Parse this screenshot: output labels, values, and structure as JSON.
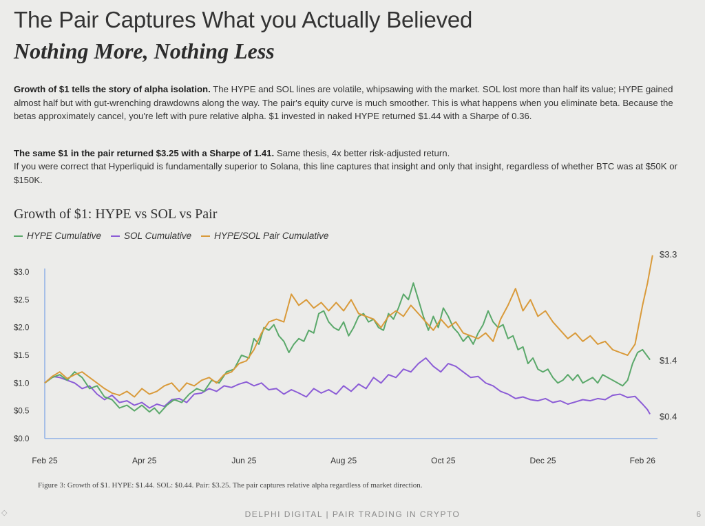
{
  "header": {
    "title": "The Pair Captures What you Actually Believed",
    "subtitle": "Nothing More, Nothing Less"
  },
  "body": {
    "p1_bold": "Growth of $1 tells the story of alpha isolation.",
    "p1_rest": " The HYPE and SOL lines are volatile, whipsawing with the market. SOL lost more than half its value; HYPE gained almost half but with gut-wrenching drawdowns along the way. The pair's equity curve is much smoother. This is what happens when you eliminate beta. Because the betas approximately cancel, you're left with pure relative alpha. $1 invested in naked HYPE returned $1.44 with a Sharpe of 0.36.",
    "p2_bold": "The same $1 in the pair returned $3.25 with a Sharpe of 1.41.",
    "p2_rest": " Same thesis, 4x better risk-adjusted return.",
    "p3": "If you were correct that Hyperliquid is fundamentally superior to Solana, this line captures that insight and only that insight, regardless of whether BTC was at $50K or $150K."
  },
  "chart_data": {
    "type": "line",
    "title": "Growth of $1: HYPE vs SOL vs Pair",
    "xlabel": "",
    "ylabel": "",
    "ylim": [
      0,
      3.0
    ],
    "yticks": [
      "$0.0",
      "$0.5",
      "$1.0",
      "$1.5",
      "$2.0",
      "$2.5",
      "$3.0"
    ],
    "ytick_values": [
      0,
      0.5,
      1.0,
      1.5,
      2.0,
      2.5,
      3.0
    ],
    "xticks": [
      "Feb 25",
      "Apr 25",
      "Jun 25",
      "Aug 25",
      "Oct 25",
      "Dec 25",
      "Feb 26"
    ],
    "x_range_months": [
      0,
      12.3
    ],
    "xtick_positions_months": [
      0,
      2,
      4,
      6,
      8,
      10,
      12
    ],
    "legend": [
      "HYPE Cumulative",
      "SOL Cumulative",
      "HYPE/SOL Pair Cumulative"
    ],
    "end_labels": [
      "$3.3",
      "$1.4",
      "$0.4"
    ],
    "series": [
      {
        "name": "HYPE Cumulative",
        "color": "#5aa86a",
        "points": [
          [
            0,
            1.0
          ],
          [
            0.15,
            1.1
          ],
          [
            0.3,
            1.15
          ],
          [
            0.45,
            1.05
          ],
          [
            0.6,
            1.2
          ],
          [
            0.75,
            1.1
          ],
          [
            0.9,
            0.9
          ],
          [
            1.05,
            0.95
          ],
          [
            1.2,
            0.75
          ],
          [
            1.35,
            0.7
          ],
          [
            1.5,
            0.55
          ],
          [
            1.65,
            0.6
          ],
          [
            1.8,
            0.5
          ],
          [
            1.95,
            0.6
          ],
          [
            2.1,
            0.48
          ],
          [
            2.2,
            0.55
          ],
          [
            2.3,
            0.45
          ],
          [
            2.45,
            0.6
          ],
          [
            2.6,
            0.7
          ],
          [
            2.75,
            0.65
          ],
          [
            2.9,
            0.8
          ],
          [
            3.05,
            0.9
          ],
          [
            3.2,
            0.85
          ],
          [
            3.35,
            1.05
          ],
          [
            3.5,
            1.0
          ],
          [
            3.65,
            1.2
          ],
          [
            3.8,
            1.25
          ],
          [
            3.95,
            1.5
          ],
          [
            4.1,
            1.45
          ],
          [
            4.2,
            1.8
          ],
          [
            4.3,
            1.7
          ],
          [
            4.4,
            2.0
          ],
          [
            4.5,
            1.95
          ],
          [
            4.6,
            2.05
          ],
          [
            4.7,
            1.85
          ],
          [
            4.8,
            1.75
          ],
          [
            4.9,
            1.55
          ],
          [
            5.0,
            1.7
          ],
          [
            5.1,
            1.8
          ],
          [
            5.2,
            1.75
          ],
          [
            5.3,
            1.95
          ],
          [
            5.4,
            1.9
          ],
          [
            5.5,
            2.25
          ],
          [
            5.6,
            2.3
          ],
          [
            5.7,
            2.1
          ],
          [
            5.8,
            2.0
          ],
          [
            5.9,
            1.95
          ],
          [
            6.0,
            2.1
          ],
          [
            6.1,
            1.85
          ],
          [
            6.2,
            2.0
          ],
          [
            6.3,
            2.2
          ],
          [
            6.4,
            2.25
          ],
          [
            6.5,
            2.1
          ],
          [
            6.6,
            2.15
          ],
          [
            6.7,
            2.0
          ],
          [
            6.8,
            1.95
          ],
          [
            6.9,
            2.25
          ],
          [
            7.0,
            2.15
          ],
          [
            7.1,
            2.35
          ],
          [
            7.2,
            2.6
          ],
          [
            7.3,
            2.5
          ],
          [
            7.4,
            2.8
          ],
          [
            7.5,
            2.5
          ],
          [
            7.6,
            2.2
          ],
          [
            7.7,
            1.95
          ],
          [
            7.8,
            2.2
          ],
          [
            7.9,
            2.0
          ],
          [
            8.0,
            2.35
          ],
          [
            8.1,
            2.2
          ],
          [
            8.2,
            2.0
          ],
          [
            8.3,
            1.9
          ],
          [
            8.4,
            1.75
          ],
          [
            8.5,
            1.85
          ],
          [
            8.6,
            1.7
          ],
          [
            8.7,
            1.9
          ],
          [
            8.8,
            2.05
          ],
          [
            8.9,
            2.3
          ],
          [
            9.0,
            2.1
          ],
          [
            9.1,
            2.0
          ],
          [
            9.2,
            2.05
          ],
          [
            9.3,
            1.8
          ],
          [
            9.4,
            1.85
          ],
          [
            9.5,
            1.6
          ],
          [
            9.6,
            1.65
          ],
          [
            9.7,
            1.35
          ],
          [
            9.8,
            1.45
          ],
          [
            9.9,
            1.25
          ],
          [
            10.0,
            1.2
          ],
          [
            10.1,
            1.25
          ],
          [
            10.2,
            1.1
          ],
          [
            10.3,
            1.0
          ],
          [
            10.4,
            1.05
          ],
          [
            10.5,
            1.15
          ],
          [
            10.6,
            1.05
          ],
          [
            10.7,
            1.15
          ],
          [
            10.8,
            1.0
          ],
          [
            10.9,
            1.05
          ],
          [
            11.0,
            1.1
          ],
          [
            11.1,
            1.0
          ],
          [
            11.2,
            1.15
          ],
          [
            11.3,
            1.1
          ],
          [
            11.4,
            1.05
          ],
          [
            11.5,
            1.0
          ],
          [
            11.6,
            0.95
          ],
          [
            11.7,
            1.05
          ],
          [
            11.8,
            1.35
          ],
          [
            11.9,
            1.55
          ],
          [
            12.0,
            1.6
          ],
          [
            12.1,
            1.48
          ],
          [
            12.15,
            1.42
          ]
        ]
      },
      {
        "name": "SOL Cumulative",
        "color": "#8b5cd6",
        "points": [
          [
            0,
            1.0
          ],
          [
            0.15,
            1.12
          ],
          [
            0.3,
            1.1
          ],
          [
            0.45,
            1.05
          ],
          [
            0.6,
            1.0
          ],
          [
            0.75,
            0.9
          ],
          [
            0.9,
            0.95
          ],
          [
            1.05,
            0.8
          ],
          [
            1.2,
            0.7
          ],
          [
            1.35,
            0.78
          ],
          [
            1.5,
            0.65
          ],
          [
            1.65,
            0.68
          ],
          [
            1.8,
            0.6
          ],
          [
            1.95,
            0.65
          ],
          [
            2.1,
            0.55
          ],
          [
            2.25,
            0.62
          ],
          [
            2.4,
            0.58
          ],
          [
            2.55,
            0.7
          ],
          [
            2.7,
            0.72
          ],
          [
            2.85,
            0.65
          ],
          [
            3.0,
            0.8
          ],
          [
            3.15,
            0.82
          ],
          [
            3.3,
            0.9
          ],
          [
            3.45,
            0.85
          ],
          [
            3.6,
            0.95
          ],
          [
            3.75,
            0.92
          ],
          [
            3.9,
            0.98
          ],
          [
            4.05,
            1.02
          ],
          [
            4.2,
            0.95
          ],
          [
            4.35,
            1.0
          ],
          [
            4.5,
            0.88
          ],
          [
            4.65,
            0.9
          ],
          [
            4.8,
            0.8
          ],
          [
            4.95,
            0.88
          ],
          [
            5.1,
            0.82
          ],
          [
            5.25,
            0.75
          ],
          [
            5.4,
            0.9
          ],
          [
            5.55,
            0.82
          ],
          [
            5.7,
            0.88
          ],
          [
            5.85,
            0.8
          ],
          [
            6.0,
            0.95
          ],
          [
            6.15,
            0.85
          ],
          [
            6.3,
            0.98
          ],
          [
            6.45,
            0.9
          ],
          [
            6.6,
            1.1
          ],
          [
            6.75,
            1.0
          ],
          [
            6.9,
            1.15
          ],
          [
            7.05,
            1.1
          ],
          [
            7.2,
            1.25
          ],
          [
            7.35,
            1.2
          ],
          [
            7.5,
            1.35
          ],
          [
            7.65,
            1.45
          ],
          [
            7.8,
            1.3
          ],
          [
            7.95,
            1.2
          ],
          [
            8.1,
            1.35
          ],
          [
            8.25,
            1.3
          ],
          [
            8.4,
            1.2
          ],
          [
            8.55,
            1.1
          ],
          [
            8.7,
            1.12
          ],
          [
            8.85,
            1.0
          ],
          [
            9.0,
            0.95
          ],
          [
            9.15,
            0.85
          ],
          [
            9.3,
            0.8
          ],
          [
            9.45,
            0.72
          ],
          [
            9.6,
            0.75
          ],
          [
            9.75,
            0.7
          ],
          [
            9.9,
            0.68
          ],
          [
            10.05,
            0.72
          ],
          [
            10.2,
            0.65
          ],
          [
            10.35,
            0.68
          ],
          [
            10.5,
            0.62
          ],
          [
            10.65,
            0.66
          ],
          [
            10.8,
            0.7
          ],
          [
            10.95,
            0.68
          ],
          [
            11.1,
            0.72
          ],
          [
            11.25,
            0.7
          ],
          [
            11.4,
            0.78
          ],
          [
            11.55,
            0.8
          ],
          [
            11.7,
            0.74
          ],
          [
            11.85,
            0.76
          ],
          [
            12.0,
            0.62
          ],
          [
            12.1,
            0.52
          ],
          [
            12.15,
            0.44
          ]
        ]
      },
      {
        "name": "HYPE/SOL Pair Cumulative",
        "color": "#d99a3a",
        "points": [
          [
            0,
            1.0
          ],
          [
            0.15,
            1.12
          ],
          [
            0.3,
            1.2
          ],
          [
            0.45,
            1.08
          ],
          [
            0.6,
            1.15
          ],
          [
            0.75,
            1.2
          ],
          [
            0.9,
            1.1
          ],
          [
            1.05,
            1.0
          ],
          [
            1.2,
            0.9
          ],
          [
            1.35,
            0.82
          ],
          [
            1.5,
            0.78
          ],
          [
            1.65,
            0.85
          ],
          [
            1.8,
            0.75
          ],
          [
            1.95,
            0.9
          ],
          [
            2.1,
            0.8
          ],
          [
            2.25,
            0.85
          ],
          [
            2.4,
            0.95
          ],
          [
            2.55,
            1.0
          ],
          [
            2.7,
            0.85
          ],
          [
            2.85,
            1.0
          ],
          [
            3.0,
            0.95
          ],
          [
            3.15,
            1.05
          ],
          [
            3.3,
            1.1
          ],
          [
            3.45,
            1.0
          ],
          [
            3.6,
            1.15
          ],
          [
            3.75,
            1.2
          ],
          [
            3.9,
            1.35
          ],
          [
            4.05,
            1.4
          ],
          [
            4.2,
            1.6
          ],
          [
            4.35,
            1.9
          ],
          [
            4.5,
            2.1
          ],
          [
            4.65,
            2.15
          ],
          [
            4.8,
            2.1
          ],
          [
            4.95,
            2.6
          ],
          [
            5.1,
            2.4
          ],
          [
            5.25,
            2.5
          ],
          [
            5.4,
            2.35
          ],
          [
            5.55,
            2.45
          ],
          [
            5.7,
            2.3
          ],
          [
            5.85,
            2.45
          ],
          [
            6.0,
            2.3
          ],
          [
            6.15,
            2.5
          ],
          [
            6.3,
            2.25
          ],
          [
            6.45,
            2.2
          ],
          [
            6.6,
            2.15
          ],
          [
            6.75,
            2.0
          ],
          [
            6.9,
            2.2
          ],
          [
            7.05,
            2.3
          ],
          [
            7.2,
            2.2
          ],
          [
            7.35,
            2.4
          ],
          [
            7.5,
            2.25
          ],
          [
            7.65,
            2.1
          ],
          [
            7.8,
            1.95
          ],
          [
            7.95,
            2.15
          ],
          [
            8.1,
            2.0
          ],
          [
            8.25,
            2.1
          ],
          [
            8.4,
            1.9
          ],
          [
            8.55,
            1.85
          ],
          [
            8.7,
            1.8
          ],
          [
            8.85,
            1.9
          ],
          [
            9.0,
            1.75
          ],
          [
            9.15,
            2.15
          ],
          [
            9.3,
            2.4
          ],
          [
            9.45,
            2.7
          ],
          [
            9.6,
            2.3
          ],
          [
            9.75,
            2.5
          ],
          [
            9.9,
            2.2
          ],
          [
            10.05,
            2.3
          ],
          [
            10.2,
            2.1
          ],
          [
            10.35,
            1.95
          ],
          [
            10.5,
            1.8
          ],
          [
            10.65,
            1.9
          ],
          [
            10.8,
            1.75
          ],
          [
            10.95,
            1.85
          ],
          [
            11.1,
            1.7
          ],
          [
            11.25,
            1.75
          ],
          [
            11.4,
            1.6
          ],
          [
            11.55,
            1.55
          ],
          [
            11.7,
            1.5
          ],
          [
            11.85,
            1.7
          ],
          [
            12.0,
            2.4
          ],
          [
            12.1,
            2.8
          ],
          [
            12.2,
            3.3
          ]
        ]
      }
    ]
  },
  "caption": "Figure 3: Growth of $1. HYPE: $1.44. SOL: $0.44. Pair: $3.25. The pair captures relative alpha regardless of market direction.",
  "footer": {
    "text": "DELPHI DIGITAL | PAIR TRADING IN CRYPTO",
    "page": "6"
  }
}
